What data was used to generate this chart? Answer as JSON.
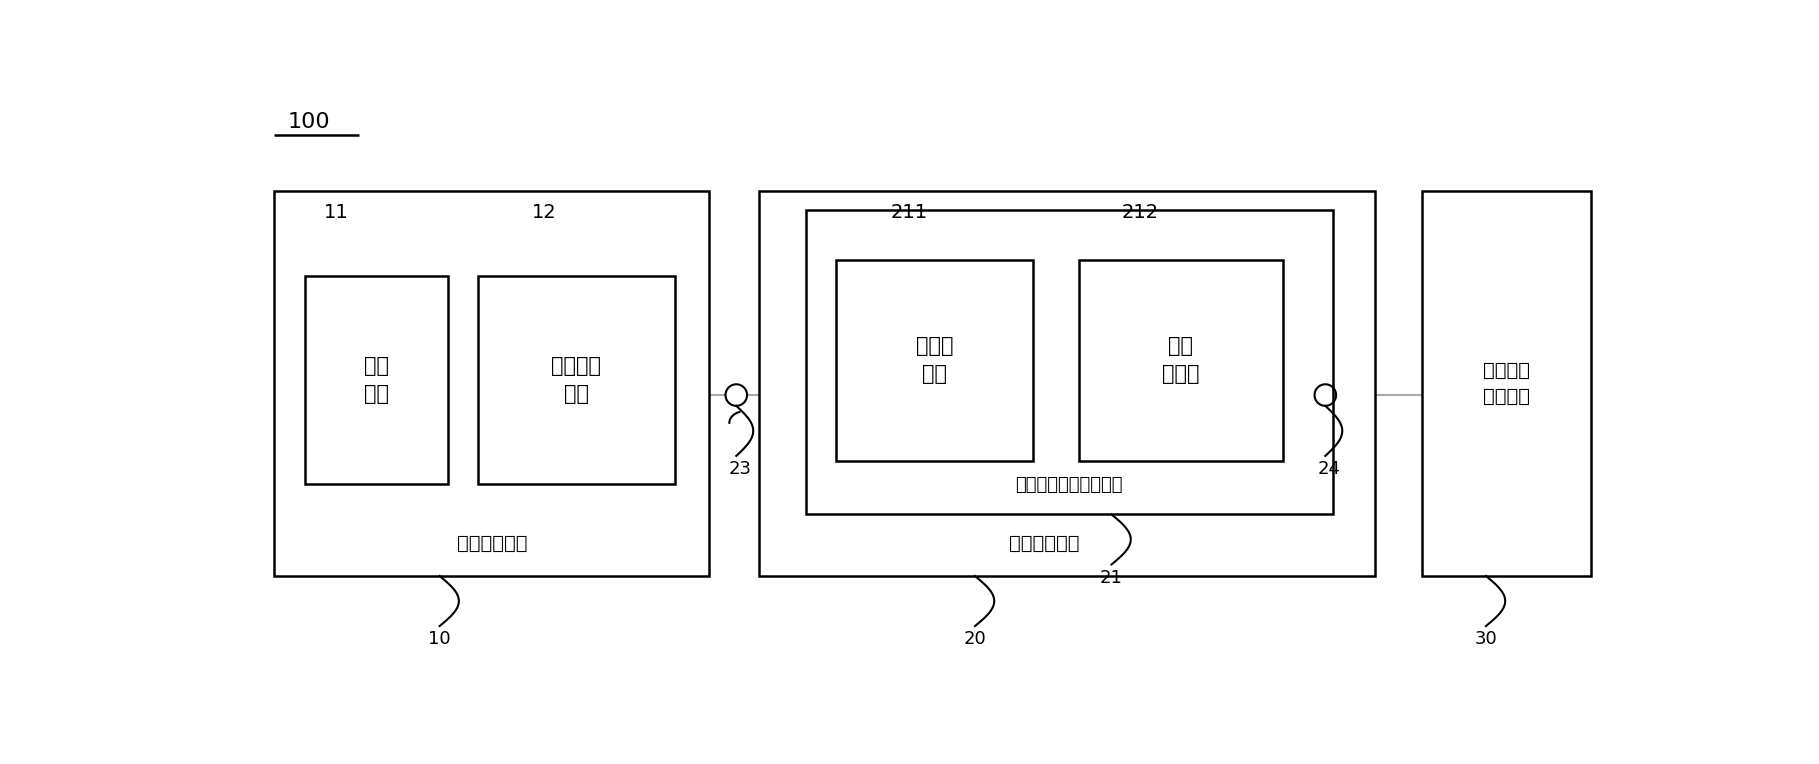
{
  "fig_width": 18.19,
  "fig_height": 7.64,
  "bg_color": "#ffffff",
  "line_color": "#000000",
  "gray_line_color": "#aaaaaa",
  "label_100": "100",
  "label_10": "10",
  "label_11": "11",
  "label_12": "12",
  "label_20": "20",
  "label_21": "21",
  "label_211": "211",
  "label_212": "212",
  "label_23": "23",
  "label_24": "24",
  "label_30": "30",
  "text_timing": "时序控制模块",
  "text_voltage_adj": "电压调整模块",
  "text_monitor": "监测\n单元",
  "text_pwm": "脉宽调制\n单元",
  "text_charge_pump": "电荷泵\n电路",
  "text_voltage_follower": "电压\n跟随器",
  "text_gamma_ref": "伽马基准电压生成单元",
  "text_gamma_gen": "伽马电压\n产生模块"
}
